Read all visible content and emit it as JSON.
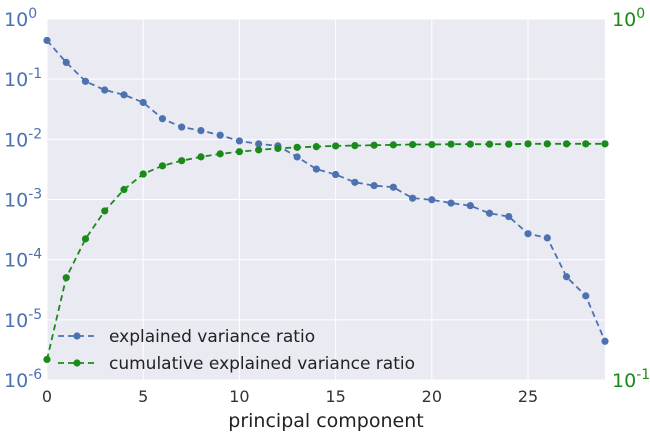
{
  "chart_data": {
    "type": "line",
    "title": "",
    "xlabel": "principal component",
    "ylabel_left": "",
    "ylabel_right": "",
    "grid": true,
    "legend_position": "lower-left",
    "x_ticks": [
      "0",
      "5",
      "10",
      "15",
      "20",
      "25"
    ],
    "x_tick_values": [
      0,
      5,
      10,
      15,
      20,
      25
    ],
    "xlim": [
      0,
      29
    ],
    "left_axis": {
      "scale": "log",
      "ylim": [
        1e-06,
        1
      ],
      "tick_values": [
        1e-06,
        1e-05,
        0.0001,
        0.001,
        0.01,
        0.1,
        1
      ],
      "tick_labels": [
        {
          "base": "10",
          "exp": "-6"
        },
        {
          "base": "10",
          "exp": "-5"
        },
        {
          "base": "10",
          "exp": "-4"
        },
        {
          "base": "10",
          "exp": "-3"
        },
        {
          "base": "10",
          "exp": "-2"
        },
        {
          "base": "10",
          "exp": "-1"
        },
        {
          "base": "10",
          "exp": "0"
        }
      ],
      "color": "#4c72b0"
    },
    "right_axis": {
      "scale": "log",
      "ylim": [
        0.1,
        1
      ],
      "tick_values": [
        0.1,
        1
      ],
      "tick_labels": [
        {
          "base": "10",
          "exp": "-1"
        },
        {
          "base": "10",
          "exp": "0"
        }
      ],
      "color": "#1a8a1a"
    },
    "x": [
      0,
      1,
      2,
      3,
      4,
      5,
      6,
      7,
      8,
      9,
      10,
      11,
      12,
      13,
      14,
      15,
      16,
      17,
      18,
      19,
      20,
      21,
      22,
      23,
      24,
      25,
      26,
      27,
      28,
      29
    ],
    "series": [
      {
        "name": "explained variance ratio",
        "axis": "left",
        "color": "#4c72b0",
        "values": [
          0.44,
          0.19,
          0.092,
          0.066,
          0.055,
          0.041,
          0.022,
          0.016,
          0.014,
          0.0117,
          0.0094,
          0.0084,
          0.0078,
          0.0051,
          0.0032,
          0.0026,
          0.00193,
          0.0017,
          0.0016,
          0.00105,
          0.00099,
          0.00087,
          0.00079,
          0.00059,
          0.00052,
          0.00027,
          0.00023,
          5.2e-05,
          2.5e-05,
          4.4e-06
        ]
      },
      {
        "name": "cumulative explained variance ratio",
        "axis": "right",
        "color": "#1a8a1a",
        "values": [
          0.114,
          0.192,
          0.246,
          0.294,
          0.337,
          0.372,
          0.392,
          0.405,
          0.415,
          0.423,
          0.429,
          0.434,
          0.438,
          0.441,
          0.443,
          0.445,
          0.446,
          0.447,
          0.448,
          0.449,
          0.449,
          0.45,
          0.45,
          0.45,
          0.45,
          0.451,
          0.451,
          0.451,
          0.451,
          0.451
        ]
      }
    ]
  }
}
